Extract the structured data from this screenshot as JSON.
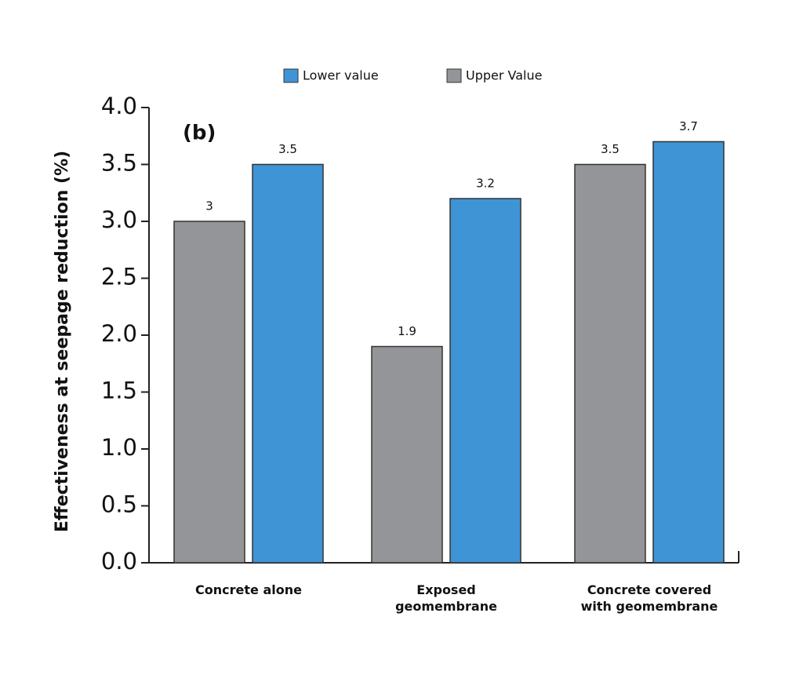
{
  "chart_data": {
    "type": "bar",
    "annotation": "(b)",
    "y_label": "Effectiveness at seepage reduction (%)",
    "categories": [
      "Concrete alone",
      "Exposed\ngeomembrane",
      "Concrete covered\nwith geomembrane"
    ],
    "series": [
      {
        "name": "Upper Value",
        "color": "#939598",
        "values": [
          3,
          1.9,
          3.5
        ]
      },
      {
        "name": "Lower value",
        "color": "#3f94d6",
        "values": [
          3.5,
          3.2,
          3.7
        ]
      }
    ],
    "ylim": [
      0,
      4
    ],
    "yticks": [
      {
        "value": 0,
        "label": "0.0"
      },
      0.5,
      {
        "value": 1,
        "label": "1.0"
      },
      1.5,
      {
        "value": 2,
        "label": "2.0"
      },
      2.5,
      {
        "value": 3,
        "label": "3.0"
      },
      3.5,
      {
        "value": 4,
        "label": "4.0"
      }
    ]
  }
}
